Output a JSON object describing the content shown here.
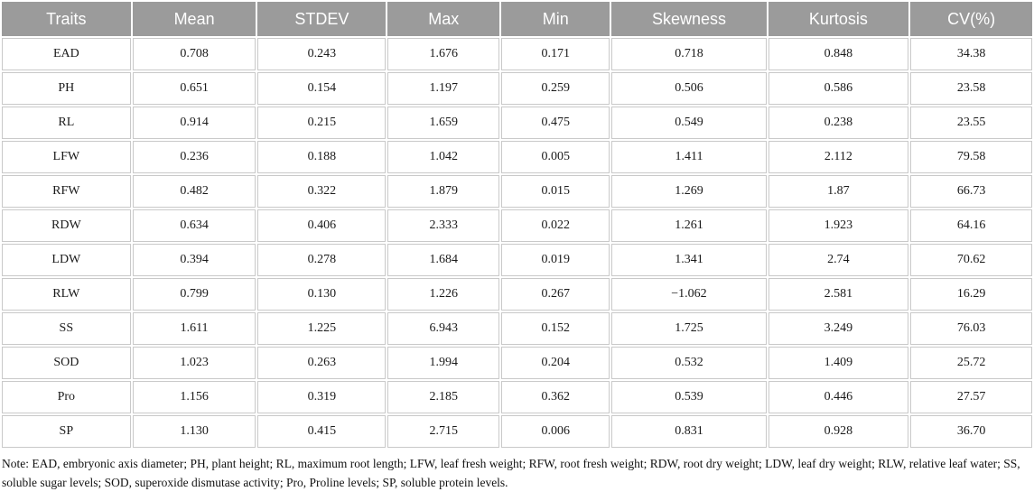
{
  "table": {
    "columns": [
      "Traits",
      "Mean",
      "STDEV",
      "Max",
      "Min",
      "Skewness",
      "Kurtosis",
      "CV(%)"
    ],
    "rows": [
      [
        "EAD",
        "0.708",
        "0.243",
        "1.676",
        "0.171",
        "0.718",
        "0.848",
        "34.38"
      ],
      [
        "PH",
        "0.651",
        "0.154",
        "1.197",
        "0.259",
        "0.506",
        "0.586",
        "23.58"
      ],
      [
        "RL",
        "0.914",
        "0.215",
        "1.659",
        "0.475",
        "0.549",
        "0.238",
        "23.55"
      ],
      [
        "LFW",
        "0.236",
        "0.188",
        "1.042",
        "0.005",
        "1.411",
        "2.112",
        "79.58"
      ],
      [
        "RFW",
        "0.482",
        "0.322",
        "1.879",
        "0.015",
        "1.269",
        "1.87",
        "66.73"
      ],
      [
        "RDW",
        "0.634",
        "0.406",
        "2.333",
        "0.022",
        "1.261",
        "1.923",
        "64.16"
      ],
      [
        "LDW",
        "0.394",
        "0.278",
        "1.684",
        "0.019",
        "1.341",
        "2.74",
        "70.62"
      ],
      [
        "RLW",
        "0.799",
        "0.130",
        "1.226",
        "0.267",
        "−1.062",
        "2.581",
        "16.29"
      ],
      [
        "SS",
        "1.611",
        "1.225",
        "6.943",
        "0.152",
        "1.725",
        "3.249",
        "76.03"
      ],
      [
        "SOD",
        "1.023",
        "0.263",
        "1.994",
        "0.204",
        "0.532",
        "1.409",
        "25.72"
      ],
      [
        "Pro",
        "1.156",
        "0.319",
        "2.185",
        "0.362",
        "0.539",
        "0.446",
        "27.57"
      ],
      [
        "SP",
        "1.130",
        "0.415",
        "2.715",
        "0.006",
        "0.831",
        "0.928",
        "36.70"
      ]
    ]
  },
  "note": "Note: EAD, embryonic axis diameter; PH, plant height; RL, maximum root length; LFW, leaf fresh weight; RFW, root fresh weight; RDW, root dry weight; LDW, leaf dry weight; RLW, relative leaf water; SS, soluble sugar levels; SOD, superoxide dismutase activity; Pro, Proline levels; SP, soluble protein levels.",
  "colors": {
    "header_bg": "#9b9b9b",
    "header_text": "#ffffff",
    "cell_border": "#c9c9c9",
    "body_text": "#1a1a1a"
  }
}
